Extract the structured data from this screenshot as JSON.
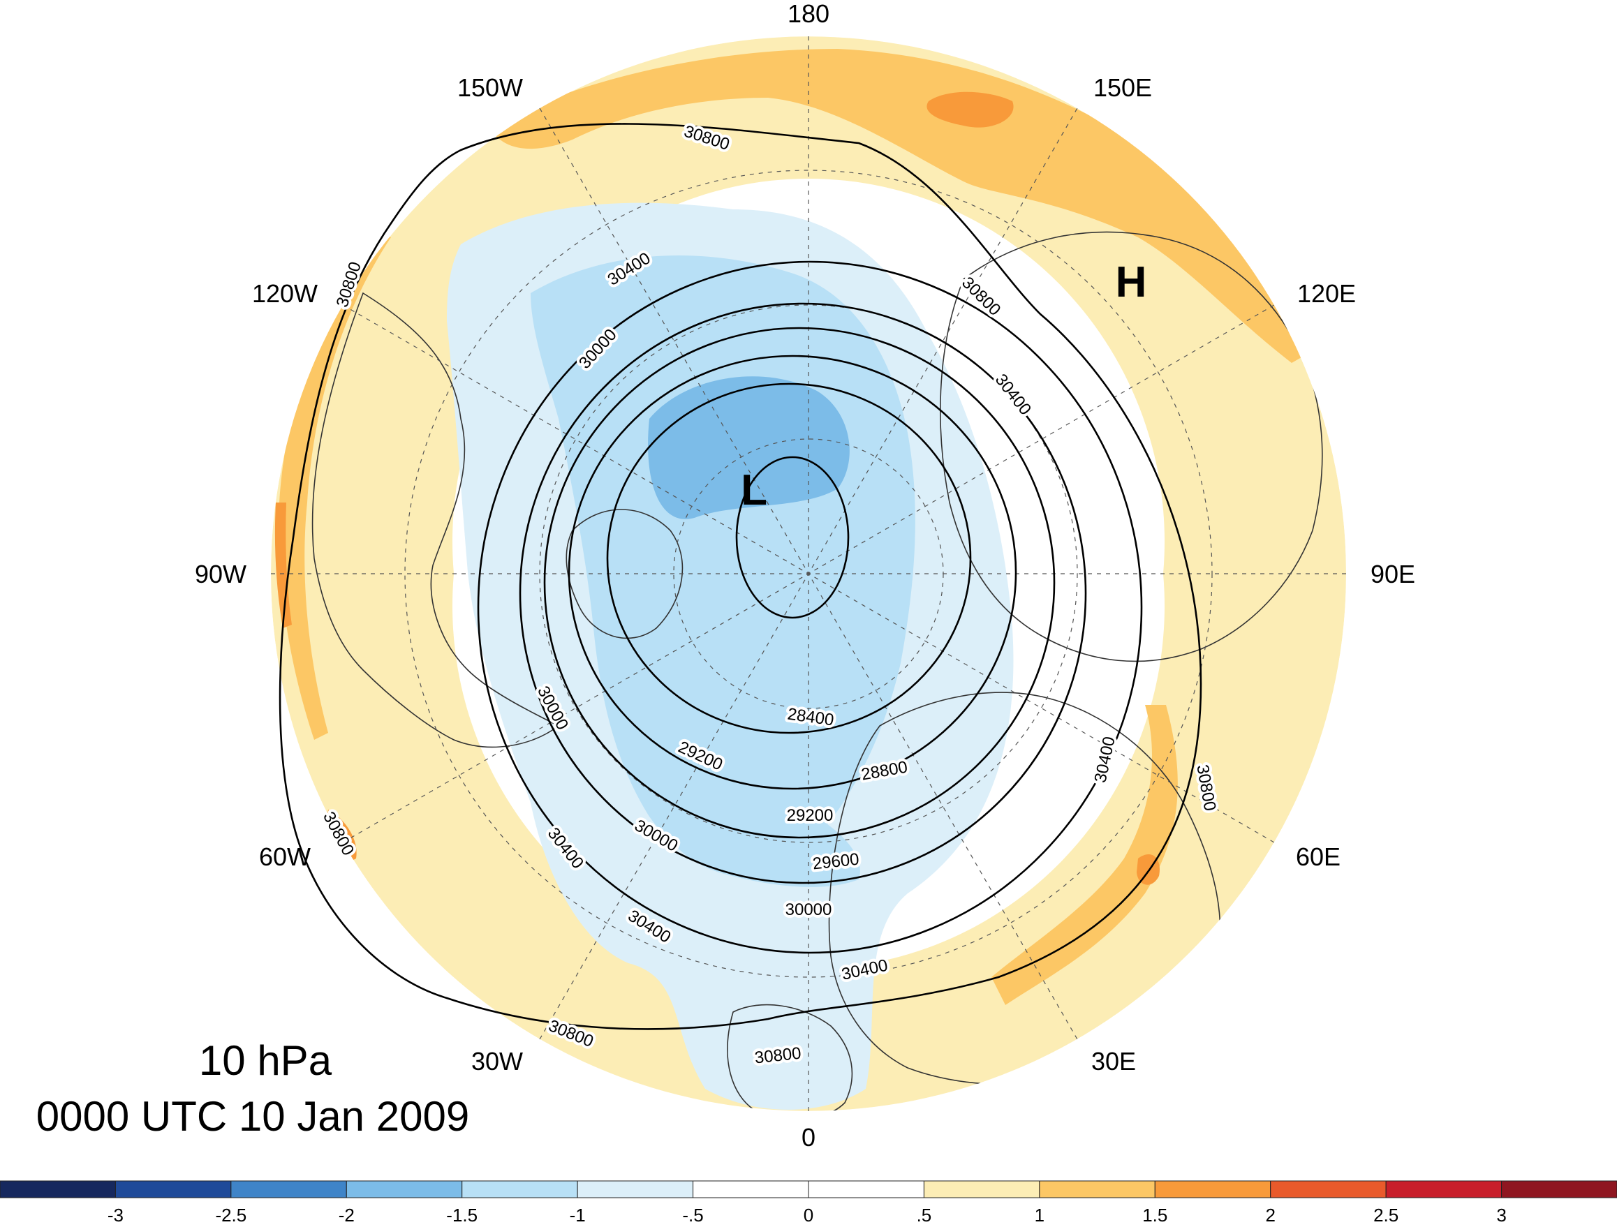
{
  "map": {
    "projection": "north-polar-stereographic",
    "field_shaded": "standardized anomaly",
    "contour_interval": 400,
    "longitude_labels": {
      "top": "180",
      "bottom": "0",
      "left": "90W",
      "right": "90E",
      "upper_left_outer": "150W",
      "upper_left": "120W",
      "lower_left_outer": "60W",
      "lower_left": "30W",
      "upper_right_outer": "150E",
      "upper_right": "120E",
      "lower_right_outer": "60E",
      "lower_right": "30E"
    },
    "centers": {
      "low": "L",
      "high": "H"
    },
    "contour_labels": {
      "c30800_top": "30800",
      "c30800_left": "30800",
      "c30800_right_upper": "30800",
      "c30800_right": "30800",
      "c30800_lower_left": "30800",
      "c30800_bottom_left": "30800",
      "c30800_bottom": "30800",
      "c30400_top": "30400",
      "c30400_right": "30400",
      "c30400_lower_right": "30400",
      "c30400_lower_left": "30400",
      "c30400_bottom_left": "30400",
      "c30400_bottom": "30400",
      "c30000_upper": "30000",
      "c30000_left": "30000",
      "c30000_lower": "30000",
      "c30000_bottom": "30000",
      "c29600": "29600",
      "c29200_left": "29200",
      "c29200_bottom": "29200",
      "c28800": "28800",
      "c28400": "28400"
    },
    "colors": {
      "contour_line": "#000000",
      "graticule": "#555555",
      "coastline": "#333333"
    }
  },
  "title": {
    "level": "10 hPa",
    "datetime": "0000 UTC 10 Jan 2009"
  },
  "colorbar": {
    "ticks": [
      "-3",
      "-2.5",
      "-2",
      "-1.5",
      "-1",
      "-.5",
      "0",
      ".5",
      "1",
      "1.5",
      "2",
      "2.5",
      "3"
    ],
    "colors": [
      "#16285e",
      "#1f4a99",
      "#3f84c8",
      "#7cbce8",
      "#b8e0f6",
      "#dceff9",
      "#ffffff",
      "#ffffff",
      "#fcedb5",
      "#fcc765",
      "#f89a3a",
      "#e95a2b",
      "#c81e2a",
      "#8f1620"
    ]
  }
}
